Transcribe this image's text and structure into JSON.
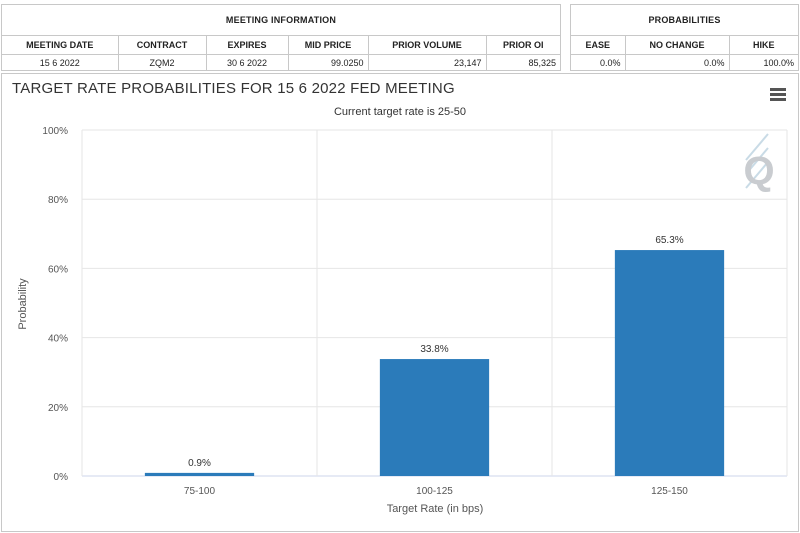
{
  "meeting_info": {
    "title": "MEETING INFORMATION",
    "headers": [
      "MEETING DATE",
      "CONTRACT",
      "EXPIRES",
      "MID PRICE",
      "PRIOR VOLUME",
      "PRIOR OI"
    ],
    "row": [
      "15 6 2022",
      "ZQM2",
      "30 6 2022",
      "99.0250",
      "23,147",
      "85,325"
    ]
  },
  "probabilities": {
    "title": "PROBABILITIES",
    "headers": [
      "EASE",
      "NO CHANGE",
      "HIKE"
    ],
    "row": [
      "0.0%",
      "0.0%",
      "100.0%"
    ]
  },
  "chart": {
    "title": "TARGET RATE PROBABILITIES FOR 15 6 2022 FED MEETING",
    "subtitle": "Current target rate is 25-50",
    "menu_icon": "hamburger-menu-icon",
    "watermark_icon": "q-logo-icon"
  },
  "chart_data": {
    "type": "bar",
    "title": "TARGET RATE PROBABILITIES FOR 15 6 2022 FED MEETING",
    "subtitle": "Current target rate is 25-50",
    "categories": [
      "75-100",
      "100-125",
      "125-150"
    ],
    "values": [
      0.9,
      33.8,
      65.3
    ],
    "data_labels": [
      "0.9%",
      "33.8%",
      "65.3%"
    ],
    "xlabel": "Target Rate (in bps)",
    "ylabel": "Probability",
    "ylim": [
      0,
      100
    ],
    "yticks": [
      "0%",
      "20%",
      "40%",
      "60%",
      "80%",
      "100%"
    ],
    "ytick_values": [
      0,
      20,
      40,
      60,
      80,
      100
    ],
    "grid": true,
    "bar_color": "#2b7bba"
  }
}
